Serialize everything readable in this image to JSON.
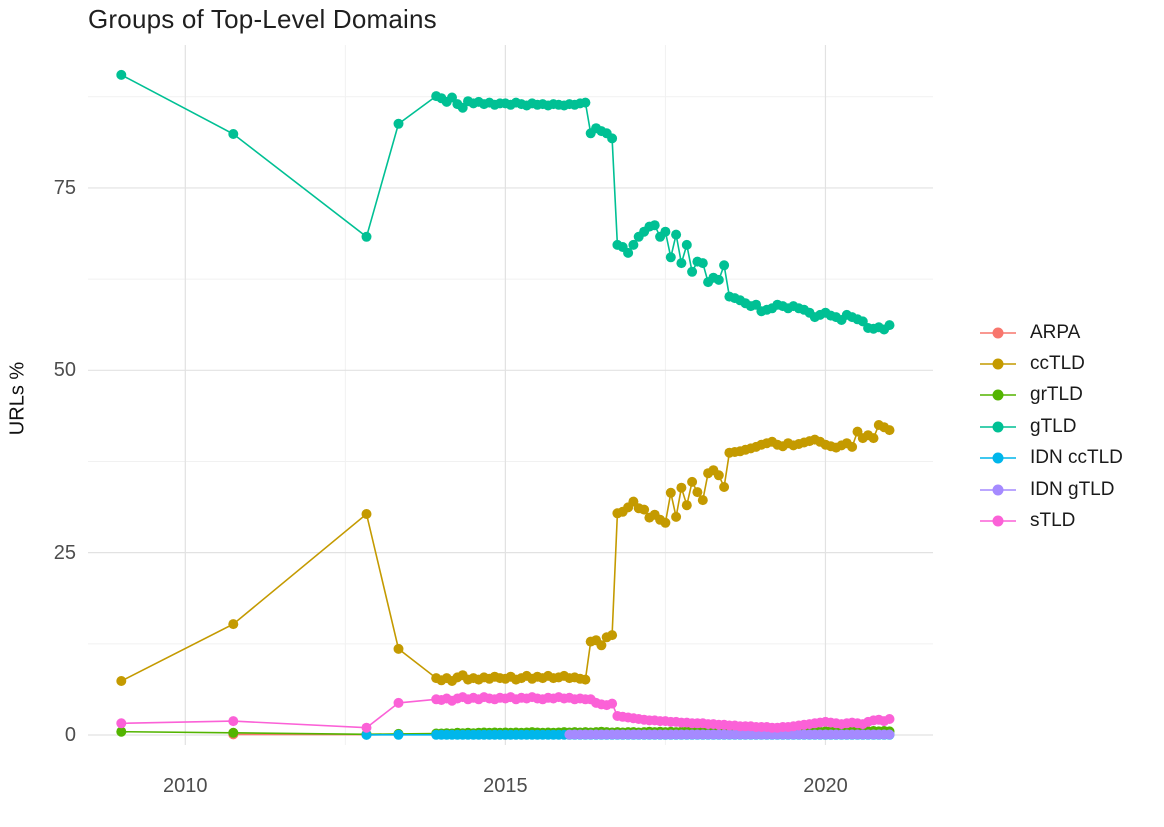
{
  "title": "Groups of Top-Level Domains",
  "chart_data": {
    "type": "line",
    "title": "Groups of Top-Level Domains",
    "xlabel": "",
    "ylabel": "URLs %",
    "grid": true,
    "legend_position": "right",
    "marker": "point+line",
    "xlim": [
      2008.48,
      2021.68
    ],
    "ylim": [
      -1.37,
      94.6
    ],
    "x_ticks": [
      2010,
      2015,
      2020
    ],
    "x_tick_labels": [
      "2010",
      "2015",
      "2020"
    ],
    "x_minor": [
      2012.5,
      2017.5
    ],
    "y_ticks": [
      0,
      25,
      50,
      75
    ],
    "y_tick_labels": [
      "0",
      "25",
      "50",
      "75"
    ],
    "y_minor": [
      12.5,
      37.5,
      62.5,
      87.5
    ],
    "grid_major_color": "#e2e2e2",
    "grid_minor_color": "#f1f1f1",
    "series": [
      {
        "name": "ARPA",
        "color": "#F8766D",
        "pre": [
          [
            2010.75,
            0.08
          ],
          [
            2012.83,
            0.05
          ]
        ]
      },
      {
        "name": "ccTLD",
        "color": "#C49A00",
        "pre": [
          [
            2009.0,
            7.4
          ],
          [
            2010.75,
            15.2
          ],
          [
            2012.83,
            30.3
          ],
          [
            2013.33,
            11.8
          ],
          [
            2013.92,
            7.8
          ]
        ],
        "monthly": {
          "start": 2014.0,
          "values": [
            7.5,
            7.8,
            7.4,
            7.9,
            8.2,
            7.6,
            7.8,
            7.6,
            7.9,
            7.7,
            8.0,
            7.8,
            7.7,
            8.0,
            7.6,
            7.8,
            8.1,
            7.7,
            8.0,
            7.8,
            8.1,
            7.8,
            7.9,
            8.1,
            7.8,
            7.9,
            7.7,
            7.6,
            12.8,
            13.0,
            12.3,
            13.4,
            13.7,
            30.4,
            30.6,
            31.2,
            32.0,
            31.1,
            30.9,
            29.8,
            30.2,
            29.5,
            29.1,
            33.2,
            29.9,
            33.9,
            31.5,
            34.7,
            33.3,
            32.2,
            35.9,
            36.3,
            35.6,
            34.0,
            38.7,
            38.8,
            38.9,
            39.1,
            39.3,
            39.5,
            39.8,
            40.0,
            40.2,
            39.8,
            39.6,
            40.0,
            39.7,
            39.9,
            40.1,
            40.3,
            40.5,
            40.2,
            39.8,
            39.6,
            39.4,
            39.7,
            40.0,
            39.5,
            41.6,
            40.7,
            41.1,
            40.7,
            42.5,
            42.2,
            41.8
          ]
        }
      },
      {
        "name": "grTLD",
        "color": "#53B400",
        "pre": [
          [
            2009.0,
            0.45
          ],
          [
            2010.75,
            0.3
          ],
          [
            2012.83,
            0.1
          ],
          [
            2013.33,
            0.15
          ],
          [
            2013.92,
            0.2
          ]
        ],
        "monthly": {
          "start": 2014.0,
          "values": [
            0.2,
            0.25,
            0.2,
            0.3,
            0.25,
            0.3,
            0.25,
            0.3,
            0.35,
            0.3,
            0.35,
            0.3,
            0.35,
            0.3,
            0.35,
            0.3,
            0.35,
            0.4,
            0.35,
            0.3,
            0.35,
            0.3,
            0.35,
            0.4,
            0.35,
            0.4,
            0.35,
            0.4,
            0.35,
            0.4,
            0.45,
            0.4,
            0.35,
            0.4,
            0.35,
            0.4,
            0.4,
            0.35,
            0.4,
            0.45,
            0.4,
            0.45,
            0.4,
            0.45,
            0.4,
            0.45,
            0.5,
            0.45,
            0.4,
            0.45,
            0.5,
            0.45,
            0.5,
            0.45,
            0.5,
            0.45,
            0.5,
            0.45,
            0.5,
            0.45,
            0.5,
            0.45,
            0.5,
            0.45,
            0.5,
            0.55,
            0.5,
            0.45,
            0.5,
            0.55,
            0.5,
            0.45,
            0.5,
            0.55,
            0.5,
            0.45,
            0.5,
            0.55,
            0.5,
            0.55,
            0.5,
            0.55,
            0.5,
            0.55,
            0.5
          ]
        }
      },
      {
        "name": "gTLD",
        "color": "#00C094",
        "pre": [
          [
            2009.0,
            90.5
          ],
          [
            2010.75,
            82.4
          ],
          [
            2012.83,
            68.3
          ],
          [
            2013.33,
            83.8
          ],
          [
            2013.92,
            87.6
          ]
        ],
        "monthly": {
          "start": 2014.0,
          "values": [
            87.3,
            86.8,
            87.4,
            86.5,
            86.0,
            86.9,
            86.6,
            86.8,
            86.5,
            86.7,
            86.4,
            86.6,
            86.6,
            86.4,
            86.7,
            86.5,
            86.3,
            86.6,
            86.4,
            86.5,
            86.3,
            86.5,
            86.4,
            86.3,
            86.5,
            86.4,
            86.6,
            86.7,
            82.5,
            83.2,
            82.8,
            82.5,
            81.8,
            67.2,
            66.9,
            66.1,
            67.2,
            68.3,
            69.0,
            69.7,
            69.9,
            68.3,
            69.0,
            65.5,
            68.6,
            64.7,
            67.2,
            63.5,
            64.9,
            64.7,
            62.1,
            62.7,
            62.4,
            64.4,
            60.1,
            59.9,
            59.6,
            59.2,
            58.8,
            59.0,
            58.1,
            58.3,
            58.5,
            59.0,
            58.8,
            58.5,
            58.8,
            58.5,
            58.3,
            57.9,
            57.3,
            57.6,
            57.9,
            57.5,
            57.3,
            56.9,
            57.6,
            57.3,
            57.0,
            56.7,
            55.8,
            55.7,
            55.9,
            55.6,
            56.2
          ]
        }
      },
      {
        "name": "IDN ccTLD",
        "color": "#00B6EB",
        "pre": [
          [
            2012.83,
            0.02
          ],
          [
            2013.33,
            0.03
          ],
          [
            2013.92,
            0.03
          ]
        ],
        "fill": {
          "start": 2014.0,
          "count": 85,
          "value": 0.03
        }
      },
      {
        "name": "IDN gTLD",
        "color": "#A58AFF",
        "fill": {
          "start": 2016.0,
          "count": 61,
          "value": 0.07
        }
      },
      {
        "name": "sTLD",
        "color": "#FB61D7",
        "pre": [
          [
            2009.0,
            1.6
          ],
          [
            2010.75,
            1.9
          ],
          [
            2012.83,
            1.0
          ],
          [
            2013.33,
            4.4
          ],
          [
            2013.92,
            4.9
          ]
        ],
        "monthly": {
          "start": 2014.0,
          "values": [
            4.8,
            5.0,
            4.7,
            5.0,
            5.2,
            4.9,
            5.1,
            4.9,
            5.2,
            5.0,
            4.9,
            5.1,
            5.0,
            5.2,
            4.9,
            5.1,
            5.0,
            5.2,
            5.0,
            4.9,
            5.1,
            5.0,
            5.2,
            5.0,
            5.1,
            4.9,
            5.0,
            4.9,
            4.9,
            4.4,
            4.2,
            4.1,
            4.3,
            2.6,
            2.5,
            2.4,
            2.3,
            2.2,
            2.1,
            2.0,
            2.0,
            1.9,
            1.9,
            1.8,
            1.8,
            1.7,
            1.7,
            1.6,
            1.6,
            1.6,
            1.5,
            1.5,
            1.4,
            1.4,
            1.3,
            1.3,
            1.2,
            1.2,
            1.2,
            1.1,
            1.1,
            1.1,
            1.0,
            1.0,
            1.1,
            1.1,
            1.2,
            1.3,
            1.4,
            1.5,
            1.6,
            1.7,
            1.8,
            1.7,
            1.6,
            1.5,
            1.6,
            1.7,
            1.6,
            1.5,
            1.8,
            2.0,
            2.1,
            1.9,
            2.2
          ]
        }
      }
    ]
  }
}
